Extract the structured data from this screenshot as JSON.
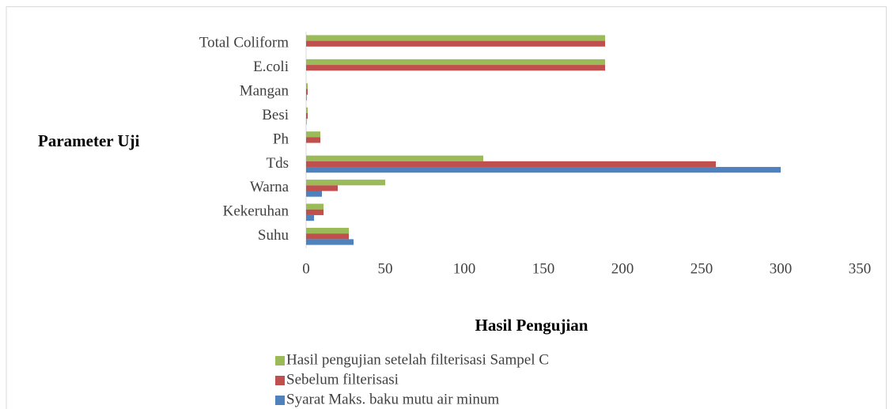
{
  "chart_data": {
    "type": "bar",
    "orientation": "horizontal",
    "y_label": "Parameter Uji",
    "x_label": "Hasil Pengujian",
    "categories": [
      "Suhu",
      "Kekeruhan",
      "Warna",
      "Tds",
      "Ph",
      "Besi",
      "Mangan",
      "E.coli",
      "Total Coliform"
    ],
    "series": [
      {
        "name": "Hasil pengujian setelah filterisasi  Sampel C",
        "color": "#9bbb59",
        "values": [
          27,
          11,
          50,
          112,
          9,
          1,
          1,
          189,
          189
        ]
      },
      {
        "name": "Sebelum filterisasi",
        "color": "#c0504d",
        "values": [
          27,
          11,
          20,
          259,
          9,
          1,
          1,
          189,
          189
        ]
      },
      {
        "name": "Syarat Maks. baku mutu air minum",
        "color": "#4f81bd",
        "values": [
          30,
          5,
          10,
          300,
          0,
          0.3,
          0.4,
          0,
          0
        ]
      }
    ],
    "xlim": [
      0,
      350
    ],
    "xticks": [
      0,
      50,
      100,
      150,
      200,
      250,
      300,
      350
    ],
    "grid": false,
    "legend": "bottom"
  }
}
